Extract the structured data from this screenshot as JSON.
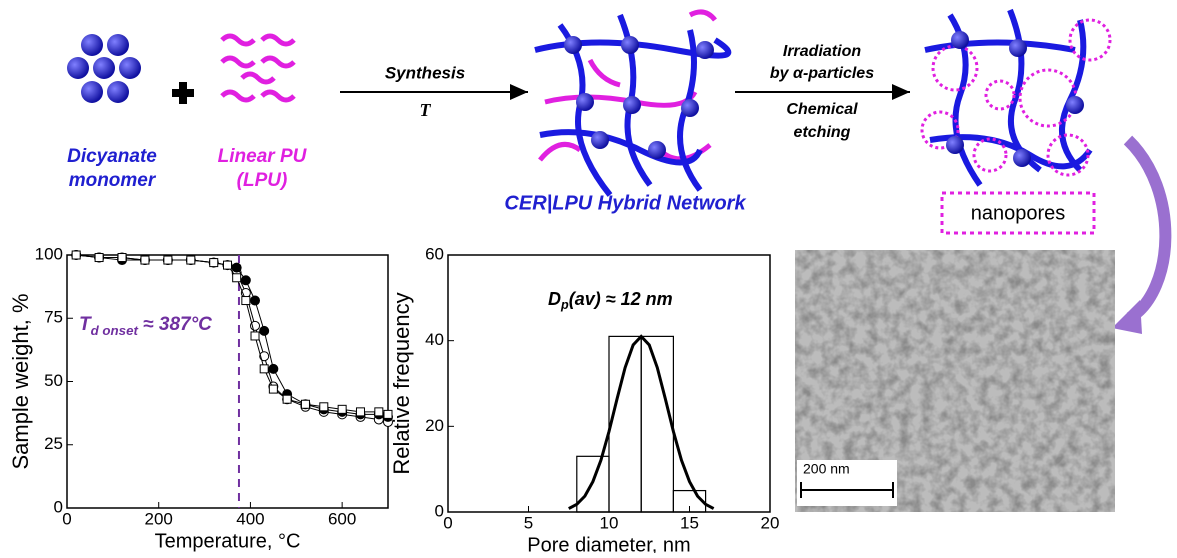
{
  "diagram": {
    "monomer": [
      "Dicyanate",
      "monomer"
    ],
    "lpu": [
      "Linear  PU",
      "(LPU)"
    ],
    "synthesis": [
      "Synthesis",
      "T"
    ],
    "irradiation": [
      "Irradiation",
      "by α-particles"
    ],
    "etching": [
      "Chemical",
      "etching"
    ],
    "network": "CER|LPU Hybrid Network",
    "nanopores": "nanopores",
    "scale_bar": "200 nm"
  },
  "chart_data": [
    {
      "type": "line",
      "xlabel": "Temperature, °C",
      "ylabel": "Sample weight, %",
      "xlim": [
        0,
        700
      ],
      "ylim": [
        0,
        100
      ],
      "xticks": [
        0,
        200,
        400,
        600
      ],
      "yticks": [
        0,
        25,
        50,
        75,
        100
      ],
      "annotation": [
        "T",
        "d onset",
        " ≈ 387°C"
      ],
      "vline": 375,
      "x": [
        20,
        70,
        120,
        170,
        220,
        270,
        320,
        350,
        370,
        390,
        410,
        430,
        450,
        480,
        520,
        560,
        600,
        640,
        680,
        700
      ],
      "series": [
        {
          "marker": "open-circle",
          "color": "#000000",
          "values": [
            100,
            99,
            99,
            98,
            98,
            98,
            97,
            96,
            93,
            85,
            72,
            60,
            48,
            43,
            40,
            38,
            37,
            36,
            35,
            34
          ]
        },
        {
          "marker": "filled-circle",
          "color": "#000000",
          "values": [
            100,
            99,
            98,
            98,
            98,
            98,
            97,
            96,
            95,
            90,
            82,
            70,
            55,
            45,
            41,
            39,
            38,
            37,
            37,
            36
          ]
        },
        {
          "marker": "open-square",
          "color": "#000000",
          "values": [
            100,
            99,
            99,
            98,
            98,
            98,
            97,
            96,
            91,
            82,
            68,
            55,
            47,
            43,
            41,
            40,
            39,
            38,
            38,
            37
          ]
        }
      ]
    },
    {
      "type": "histogram",
      "xlabel": "Pore diameter, nm",
      "ylabel": "Relative frequency",
      "xlim": [
        0,
        20
      ],
      "ylim": [
        0,
        60
      ],
      "xticks": [
        0,
        5,
        10,
        15,
        20
      ],
      "yticks": [
        0,
        20,
        40,
        60
      ],
      "bins": [
        8,
        10,
        12,
        14,
        16
      ],
      "counts": [
        13,
        41,
        41,
        5
      ],
      "annotation": [
        "D",
        "p",
        "(av) ≈ 12 nm"
      ],
      "fit": {
        "x": [
          7.5,
          8,
          8.5,
          9,
          9.5,
          10,
          10.5,
          11,
          11.5,
          12,
          12.5,
          13,
          13.5,
          14,
          14.5,
          15,
          15.5,
          16,
          16.5
        ],
        "y": [
          0.8,
          1.8,
          3.7,
          7.1,
          12.1,
          18.8,
          26.4,
          33.7,
          39.0,
          41,
          39.0,
          33.7,
          26.4,
          18.8,
          12.1,
          7.1,
          3.7,
          1.8,
          0.8
        ]
      }
    }
  ]
}
